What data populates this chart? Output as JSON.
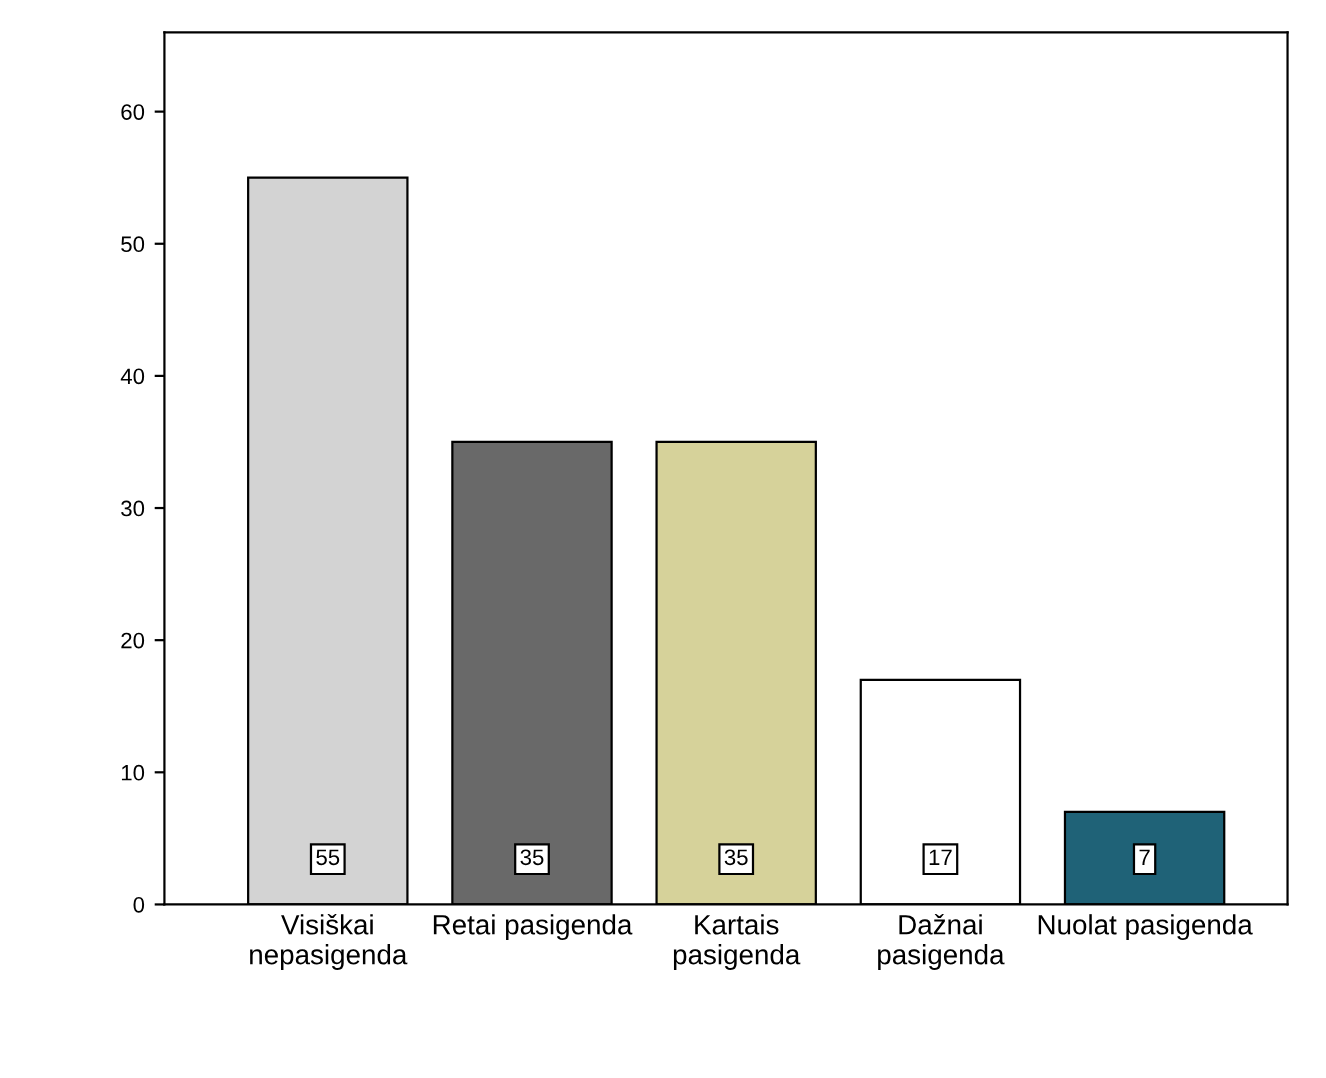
{
  "chart_data": {
    "type": "bar",
    "categories": [
      "Visiškai\nnepasigenda",
      "Retai pasigenda",
      "Kartais\npasigenda",
      "Dažnai\npasigenda",
      "Nuolat pasigenda"
    ],
    "values": [
      55,
      35,
      35,
      17,
      7
    ],
    "colors": [
      "#d3d3d3",
      "#696969",
      "#d6d29a",
      "#ffffff",
      "#1f6277"
    ],
    "ylim": [
      0,
      66
    ],
    "yticks": [
      0,
      10,
      20,
      30,
      40,
      50,
      60
    ],
    "data_labels": true,
    "grid": false,
    "legend": false
  }
}
